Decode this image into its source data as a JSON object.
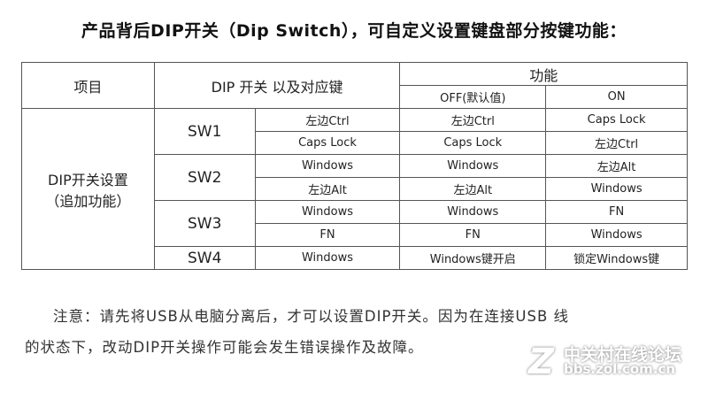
{
  "title": "产品背后DIP开关（Dip Switch），可自定义设置键盘部分按键功能：",
  "table": {
    "headers": {
      "item": "项目",
      "dip": "DIP 开关 以及对应键",
      "function": "功能",
      "off": "OFF(默认值)",
      "on": "ON"
    },
    "group": {
      "line1": "DIP开关设置",
      "line2": "（追加功能）"
    },
    "switches": [
      {
        "name": "SW1",
        "rows": [
          {
            "key": "左边Ctrl",
            "off": "左边Ctrl",
            "on": "Caps Lock"
          },
          {
            "key": "Caps Lock",
            "off": "Caps Lock",
            "on": "左边Ctrl"
          }
        ]
      },
      {
        "name": "SW2",
        "rows": [
          {
            "key": "Windows",
            "off": "Windows",
            "on": "左边Alt"
          },
          {
            "key": "左边Alt",
            "off": "左边Alt",
            "on": "Windows"
          }
        ]
      },
      {
        "name": "SW3",
        "rows": [
          {
            "key": "Windows",
            "off": "Windows",
            "on": "FN"
          },
          {
            "key": "FN",
            "off": "FN",
            "on": "Windows"
          }
        ]
      },
      {
        "name": "SW4",
        "rows": [
          {
            "key": "Windows",
            "off": "Windows键开启",
            "on": "锁定Windows键"
          }
        ]
      }
    ]
  },
  "note": {
    "line1": "注意：请先将USB从电脑分离后，才可以设置DIP开关。因为在连接USB 线",
    "line2": "的状态下，改动DIP开关操作可能会发生错误操作及故障。"
  },
  "watermark": {
    "logo": "Z",
    "name": "中关村在线论坛",
    "url": "bbs.zol.com.cn"
  }
}
